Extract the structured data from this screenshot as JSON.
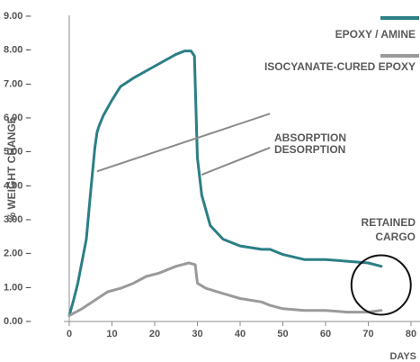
{
  "colors": {
    "axis": "#8c8c8c",
    "tick_text": "#555555",
    "label_text": "#5a5a5a",
    "annotation_line": "#8a8a8a",
    "circle": "#111111"
  },
  "chart_data": {
    "type": "line",
    "title": "",
    "xlabel": "DAYS",
    "ylabel": "% WEIGHT CHANGE",
    "xlim": [
      0,
      80
    ],
    "ylim": [
      0,
      9
    ],
    "x_ticks": [
      0,
      10,
      20,
      30,
      40,
      50,
      60,
      70,
      80
    ],
    "y_ticks": [
      0,
      1,
      2,
      3,
      4,
      5,
      6,
      7,
      8,
      9
    ],
    "x_tick_labels": [
      "0",
      "10",
      "20",
      "30",
      "40",
      "50",
      "60",
      "70",
      "80"
    ],
    "y_tick_labels": [
      "0.00 –",
      "1.00 –",
      "2.00 –",
      "3.00 –",
      "4.00 –",
      "5.00 –",
      "6.00 –",
      "7.00 –",
      "8.00 –",
      "9.00 –"
    ],
    "grid": false,
    "legend_position": "top-right",
    "series": [
      {
        "name": "EPOXY / AMINE",
        "color": "#2b7f86",
        "x": [
          0,
          1,
          2,
          4,
          5,
          6,
          6.5,
          7,
          8,
          10,
          12,
          15,
          20,
          25,
          27,
          28.5,
          29.3,
          29.6,
          30,
          31,
          33,
          36,
          40,
          45,
          47,
          50,
          55,
          60,
          65,
          70,
          73
        ],
        "y": [
          0.15,
          0.6,
          1.1,
          2.4,
          3.8,
          5.1,
          5.55,
          5.75,
          6.05,
          6.5,
          6.9,
          7.15,
          7.5,
          7.85,
          7.95,
          7.95,
          7.8,
          6.5,
          4.8,
          3.7,
          2.8,
          2.4,
          2.2,
          2.1,
          2.1,
          1.95,
          1.8,
          1.8,
          1.75,
          1.7,
          1.6
        ]
      },
      {
        "name": "ISOCYANATE-CURED EPOXY",
        "color": "#9a9a9a",
        "x": [
          0,
          3,
          6,
          9,
          12,
          15,
          18,
          21,
          25,
          28,
          29.5,
          30,
          32,
          36,
          40,
          45,
          47,
          50,
          55,
          60,
          65,
          70,
          73
        ],
        "y": [
          0.15,
          0.35,
          0.6,
          0.85,
          0.95,
          1.1,
          1.3,
          1.4,
          1.6,
          1.7,
          1.65,
          1.1,
          0.95,
          0.8,
          0.65,
          0.55,
          0.45,
          0.35,
          0.3,
          0.3,
          0.25,
          0.25,
          0.3
        ]
      }
    ],
    "annotations": [
      {
        "text": "ABSORPTION",
        "line_from": [
          6.5,
          4.4
        ],
        "line_to": [
          47,
          6.1
        ]
      },
      {
        "text": "DESORPTION",
        "line_from": [
          31,
          4.3
        ],
        "line_to": [
          47,
          5.1
        ]
      },
      {
        "text": "RETAINED CARGO",
        "lines": [
          "RETAINED",
          "CARGO"
        ],
        "circle_center": [
          73,
          1.05
        ]
      }
    ]
  }
}
